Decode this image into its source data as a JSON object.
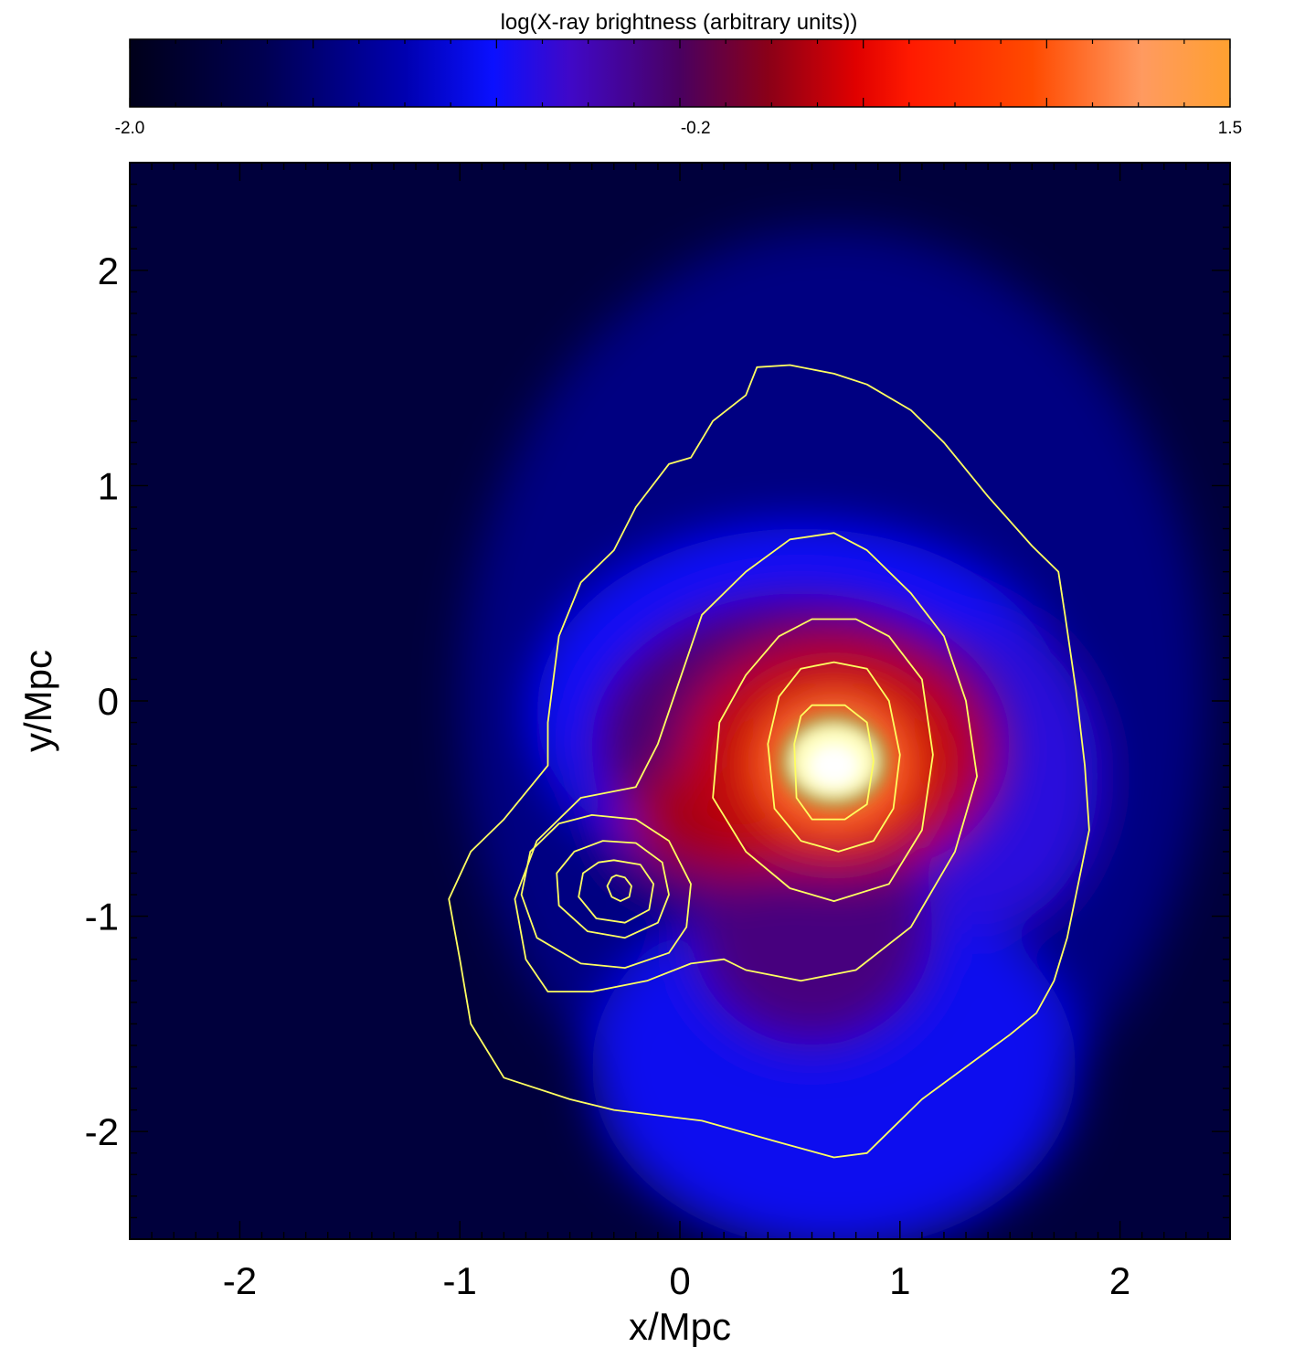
{
  "chart_data": {
    "type": "heatmap",
    "colorbar": {
      "label": "log(X-ray brightness (arbitrary units))",
      "min": -2.0,
      "max": 1.5,
      "tick_labels": [
        "-2.0",
        "-0.2",
        "1.5"
      ],
      "tick_values": [
        -2.0,
        -0.2,
        1.5
      ],
      "colors": [
        {
          "v": 0.0,
          "c": "#00001a"
        },
        {
          "v": 0.12,
          "c": "#000050"
        },
        {
          "v": 0.25,
          "c": "#0000b0"
        },
        {
          "v": 0.33,
          "c": "#0a10ff"
        },
        {
          "v": 0.4,
          "c": "#4008c8"
        },
        {
          "v": 0.5,
          "c": "#4a0060"
        },
        {
          "v": 0.58,
          "c": "#8a0018"
        },
        {
          "v": 0.66,
          "c": "#e00000"
        },
        {
          "v": 0.71,
          "c": "#ff1a00"
        },
        {
          "v": 0.82,
          "c": "#ff4a00"
        },
        {
          "v": 0.92,
          "c": "#ff9a60"
        },
        {
          "v": 1.0,
          "c": "#ffa030"
        }
      ]
    },
    "xlabel": "x/Mpc",
    "ylabel": "y/Mpc",
    "xlim": [
      -2.5,
      2.5
    ],
    "ylim": [
      -2.5,
      2.5
    ],
    "x_ticks": [
      -2,
      -1,
      0,
      1,
      2
    ],
    "y_ticks": [
      -2,
      -1,
      0,
      1,
      2
    ],
    "x_tick_labels": [
      "-2",
      "-1",
      "0",
      "1",
      "2"
    ],
    "y_tick_labels": [
      "-2",
      "-1",
      "0",
      "1",
      "2"
    ],
    "background_color": "#00003c",
    "emission_components": [
      {
        "x": 0.7,
        "y": 0.0,
        "rx": 1.7,
        "ry": 2.2,
        "value": -1.35
      },
      {
        "x": 0.7,
        "y": -1.7,
        "rx": 1.1,
        "ry": 0.85,
        "value": -0.9
      },
      {
        "x": 0.55,
        "y": -0.05,
        "rx": 1.2,
        "ry": 0.85,
        "value": -0.85
      },
      {
        "x": 1.4,
        "y": -0.35,
        "rx": 0.5,
        "ry": 0.7,
        "value": -0.7
      },
      {
        "x": 0.55,
        "y": -0.2,
        "rx": 0.95,
        "ry": 0.7,
        "value": -0.3
      },
      {
        "x": 0.6,
        "y": -1.05,
        "rx": 0.55,
        "ry": 0.55,
        "value": -0.35
      },
      {
        "x": 0.2,
        "y": -0.55,
        "rx": 0.45,
        "ry": 0.28,
        "value": 0.1
      },
      {
        "x": 0.7,
        "y": -0.25,
        "rx": 0.7,
        "ry": 0.55,
        "value": 0.2
      },
      {
        "x": 0.7,
        "y": -0.3,
        "rx": 0.38,
        "ry": 0.34,
        "value": 0.85
      },
      {
        "x": 0.7,
        "y": -0.28,
        "rx": 0.22,
        "ry": 0.2,
        "value": 1.25
      }
    ],
    "core": {
      "x": 0.7,
      "y": -0.28,
      "rx": 0.2,
      "ry": 0.17,
      "color": "#ffffc0",
      "edge_color": "#9a9a10"
    },
    "contour_color": "#ffff60",
    "contours": [
      {
        "name": "outer",
        "points": [
          [
            -0.3,
            0.7
          ],
          [
            -0.2,
            0.9
          ],
          [
            -0.05,
            1.1
          ],
          [
            0.05,
            1.13
          ],
          [
            0.15,
            1.3
          ],
          [
            0.3,
            1.42
          ],
          [
            0.35,
            1.55
          ],
          [
            0.5,
            1.56
          ],
          [
            0.7,
            1.52
          ],
          [
            0.85,
            1.47
          ],
          [
            1.05,
            1.35
          ],
          [
            1.2,
            1.2
          ],
          [
            1.4,
            0.95
          ],
          [
            1.6,
            0.72
          ],
          [
            1.72,
            0.6
          ],
          [
            1.75,
            0.4
          ],
          [
            1.8,
            0.05
          ],
          [
            1.84,
            -0.3
          ],
          [
            1.86,
            -0.6
          ],
          [
            1.82,
            -0.8
          ],
          [
            1.76,
            -1.1
          ],
          [
            1.7,
            -1.3
          ],
          [
            1.62,
            -1.45
          ],
          [
            1.5,
            -1.55
          ],
          [
            1.3,
            -1.7
          ],
          [
            1.1,
            -1.85
          ],
          [
            0.95,
            -2.0
          ],
          [
            0.85,
            -2.1
          ],
          [
            0.7,
            -2.12
          ],
          [
            0.45,
            -2.05
          ],
          [
            0.1,
            -1.95
          ],
          [
            -0.3,
            -1.9
          ],
          [
            -0.5,
            -1.85
          ],
          [
            -0.8,
            -1.75
          ],
          [
            -0.95,
            -1.5
          ],
          [
            -1.0,
            -1.2
          ],
          [
            -1.05,
            -0.92
          ],
          [
            -0.95,
            -0.7
          ],
          [
            -0.8,
            -0.55
          ],
          [
            -0.6,
            -0.3
          ],
          [
            -0.6,
            -0.1
          ],
          [
            -0.55,
            0.3
          ],
          [
            -0.45,
            0.55
          ],
          [
            -0.3,
            0.7
          ]
        ]
      },
      {
        "name": "main-2",
        "points": [
          [
            0.1,
            0.4
          ],
          [
            0.3,
            0.6
          ],
          [
            0.5,
            0.75
          ],
          [
            0.7,
            0.78
          ],
          [
            0.85,
            0.7
          ],
          [
            1.05,
            0.5
          ],
          [
            1.2,
            0.3
          ],
          [
            1.3,
            0.0
          ],
          [
            1.35,
            -0.35
          ],
          [
            1.25,
            -0.7
          ],
          [
            1.05,
            -1.05
          ],
          [
            0.8,
            -1.25
          ],
          [
            0.55,
            -1.3
          ],
          [
            0.3,
            -1.25
          ],
          [
            0.2,
            -1.2
          ],
          [
            0.05,
            -1.22
          ],
          [
            -0.15,
            -1.3
          ],
          [
            -0.4,
            -1.35
          ],
          [
            -0.6,
            -1.35
          ],
          [
            -0.7,
            -1.2
          ],
          [
            -0.75,
            -0.92
          ],
          [
            -0.65,
            -0.65
          ],
          [
            -0.45,
            -0.45
          ],
          [
            -0.2,
            -0.4
          ],
          [
            -0.1,
            -0.2
          ],
          [
            0.0,
            0.1
          ],
          [
            0.1,
            0.4
          ]
        ]
      },
      {
        "name": "main-3",
        "points": [
          [
            0.45,
            0.3
          ],
          [
            0.6,
            0.38
          ],
          [
            0.8,
            0.38
          ],
          [
            0.95,
            0.3
          ],
          [
            1.1,
            0.1
          ],
          [
            1.15,
            -0.25
          ],
          [
            1.1,
            -0.6
          ],
          [
            0.95,
            -0.85
          ],
          [
            0.7,
            -0.93
          ],
          [
            0.5,
            -0.87
          ],
          [
            0.3,
            -0.7
          ],
          [
            0.15,
            -0.45
          ],
          [
            0.18,
            -0.1
          ],
          [
            0.3,
            0.12
          ],
          [
            0.45,
            0.3
          ]
        ]
      },
      {
        "name": "main-4",
        "points": [
          [
            0.55,
            0.15
          ],
          [
            0.7,
            0.18
          ],
          [
            0.85,
            0.15
          ],
          [
            0.95,
            0.0
          ],
          [
            1.0,
            -0.25
          ],
          [
            0.97,
            -0.5
          ],
          [
            0.88,
            -0.65
          ],
          [
            0.72,
            -0.7
          ],
          [
            0.55,
            -0.65
          ],
          [
            0.43,
            -0.5
          ],
          [
            0.4,
            -0.2
          ],
          [
            0.45,
            0.02
          ],
          [
            0.55,
            0.15
          ]
        ]
      },
      {
        "name": "main-5",
        "points": [
          [
            0.6,
            -0.02
          ],
          [
            0.75,
            -0.02
          ],
          [
            0.85,
            -0.1
          ],
          [
            0.88,
            -0.28
          ],
          [
            0.85,
            -0.48
          ],
          [
            0.75,
            -0.55
          ],
          [
            0.6,
            -0.55
          ],
          [
            0.53,
            -0.45
          ],
          [
            0.52,
            -0.2
          ],
          [
            0.55,
            -0.07
          ],
          [
            0.6,
            -0.02
          ]
        ]
      },
      {
        "name": "sub-1",
        "points": [
          [
            -0.4,
            -0.53
          ],
          [
            -0.2,
            -0.55
          ],
          [
            -0.05,
            -0.65
          ],
          [
            0.05,
            -0.85
          ],
          [
            0.03,
            -1.05
          ],
          [
            -0.05,
            -1.17
          ],
          [
            -0.25,
            -1.24
          ],
          [
            -0.45,
            -1.22
          ],
          [
            -0.65,
            -1.1
          ],
          [
            -0.72,
            -0.9
          ],
          [
            -0.68,
            -0.7
          ],
          [
            -0.55,
            -0.57
          ],
          [
            -0.4,
            -0.53
          ]
        ]
      },
      {
        "name": "sub-2",
        "points": [
          [
            -0.35,
            -0.65
          ],
          [
            -0.2,
            -0.66
          ],
          [
            -0.08,
            -0.75
          ],
          [
            -0.05,
            -0.9
          ],
          [
            -0.1,
            -1.03
          ],
          [
            -0.25,
            -1.1
          ],
          [
            -0.42,
            -1.07
          ],
          [
            -0.55,
            -0.95
          ],
          [
            -0.56,
            -0.8
          ],
          [
            -0.48,
            -0.7
          ],
          [
            -0.35,
            -0.65
          ]
        ]
      },
      {
        "name": "sub-3",
        "points": [
          [
            -0.3,
            -0.74
          ],
          [
            -0.18,
            -0.76
          ],
          [
            -0.12,
            -0.85
          ],
          [
            -0.14,
            -0.97
          ],
          [
            -0.25,
            -1.03
          ],
          [
            -0.38,
            -1.01
          ],
          [
            -0.46,
            -0.91
          ],
          [
            -0.44,
            -0.8
          ],
          [
            -0.37,
            -0.75
          ],
          [
            -0.3,
            -0.74
          ]
        ]
      },
      {
        "name": "sub-4",
        "points": [
          [
            -0.29,
            -0.81
          ],
          [
            -0.25,
            -0.82
          ],
          [
            -0.22,
            -0.86
          ],
          [
            -0.23,
            -0.91
          ],
          [
            -0.27,
            -0.93
          ],
          [
            -0.31,
            -0.91
          ],
          [
            -0.33,
            -0.86
          ],
          [
            -0.31,
            -0.82
          ],
          [
            -0.29,
            -0.81
          ]
        ]
      }
    ]
  }
}
